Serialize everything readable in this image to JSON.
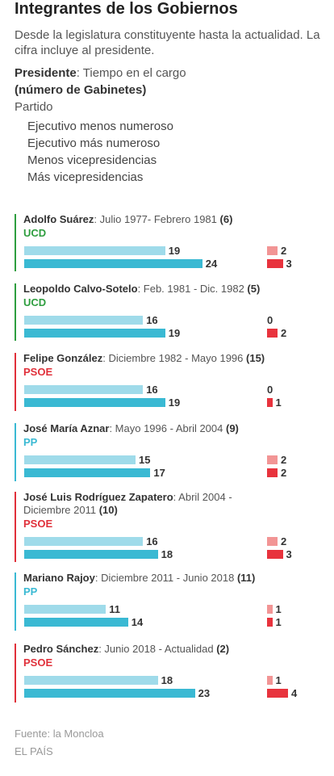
{
  "title": "Integrantes de los Gobiernos",
  "subtitle": "Desde la legislatura constituyente hasta la actualidad. La cifra incluye al presidente.",
  "key": {
    "president_word": "Presidente",
    "president_rest": ": Tiempo en el cargo",
    "cabinets": "(número de Gabinetes)",
    "party": "Partido"
  },
  "legend": [
    {
      "label": "Ejecutivo menos numeroso",
      "color": "#9fdbea"
    },
    {
      "label": "Ejecutivo más numeroso",
      "color": "#3ab9d3"
    },
    {
      "label": "Menos vicepresidencias",
      "color": "#f29595"
    },
    {
      "label": "Más vicepresidencias",
      "color": "#e8333d"
    }
  ],
  "party_colors": {
    "UCD": "#2e9e3f",
    "PSOE": "#e0303a",
    "PP": "#3ab9d3"
  },
  "chart_data": {
    "type": "bar",
    "series": [
      {
        "name": "Ejecutivo menos numeroso",
        "values": [
          19,
          16,
          16,
          15,
          16,
          11,
          18
        ]
      },
      {
        "name": "Ejecutivo más numeroso",
        "values": [
          24,
          19,
          19,
          17,
          18,
          14,
          23
        ]
      },
      {
        "name": "Menos vicepresidencias",
        "values": [
          2,
          0,
          0,
          2,
          2,
          1,
          1
        ]
      },
      {
        "name": "Más vicepresidencias",
        "values": [
          3,
          2,
          1,
          2,
          3,
          1,
          4
        ]
      }
    ],
    "categories": [
      "Adolfo Suárez",
      "Leopoldo Calvo-Sotelo",
      "Felipe González",
      "José María Aznar",
      "José Luis Rodríguez Zapatero",
      "Mariano Rajoy",
      "Pedro Sánchez"
    ]
  },
  "presidents": [
    {
      "name": "Adolfo Suárez",
      "period": ": Julio 1977- Febrero 1981 ",
      "cabinets": "(6)",
      "party": "UCD",
      "min_members": 19,
      "max_members": 24,
      "min_vice": 2,
      "max_vice": 3
    },
    {
      "name": "Leopoldo Calvo-Sotelo",
      "period": ": Feb. 1981 - Dic. 1982 ",
      "cabinets": "(5)",
      "party": "UCD",
      "min_members": 16,
      "max_members": 19,
      "min_vice": 0,
      "max_vice": 2
    },
    {
      "name": "Felipe González",
      "period": ":  Diciembre 1982 - Mayo 1996 ",
      "cabinets": "(15)",
      "party": "PSOE",
      "min_members": 16,
      "max_members": 19,
      "min_vice": 0,
      "max_vice": 1
    },
    {
      "name": "José María Aznar",
      "period": ":  Mayo 1996 - Abril 2004 ",
      "cabinets": "(9)",
      "party": "PP",
      "min_members": 15,
      "max_members": 17,
      "min_vice": 2,
      "max_vice": 2
    },
    {
      "name": "José Luis Rodríguez Zapatero",
      "period": ": Abril 2004 - Diciembre 2011 ",
      "cabinets": "(10)",
      "party": "PSOE",
      "min_members": 16,
      "max_members": 18,
      "min_vice": 2,
      "max_vice": 3
    },
    {
      "name": "Mariano Rajoy",
      "period": ":  Diciembre 2011 - Junio 2018 ",
      "cabinets": "(11)",
      "party": "PP",
      "min_members": 11,
      "max_members": 14,
      "min_vice": 1,
      "max_vice": 1
    },
    {
      "name": "Pedro Sánchez",
      "period": ": Junio 2018 - Actualidad ",
      "cabinets": "(2)",
      "party": "PSOE",
      "min_members": 18,
      "max_members": 23,
      "min_vice": 1,
      "max_vice": 4
    }
  ],
  "footer": {
    "source": "Fuente: la Moncloa",
    "brand": "EL PAÍS"
  }
}
